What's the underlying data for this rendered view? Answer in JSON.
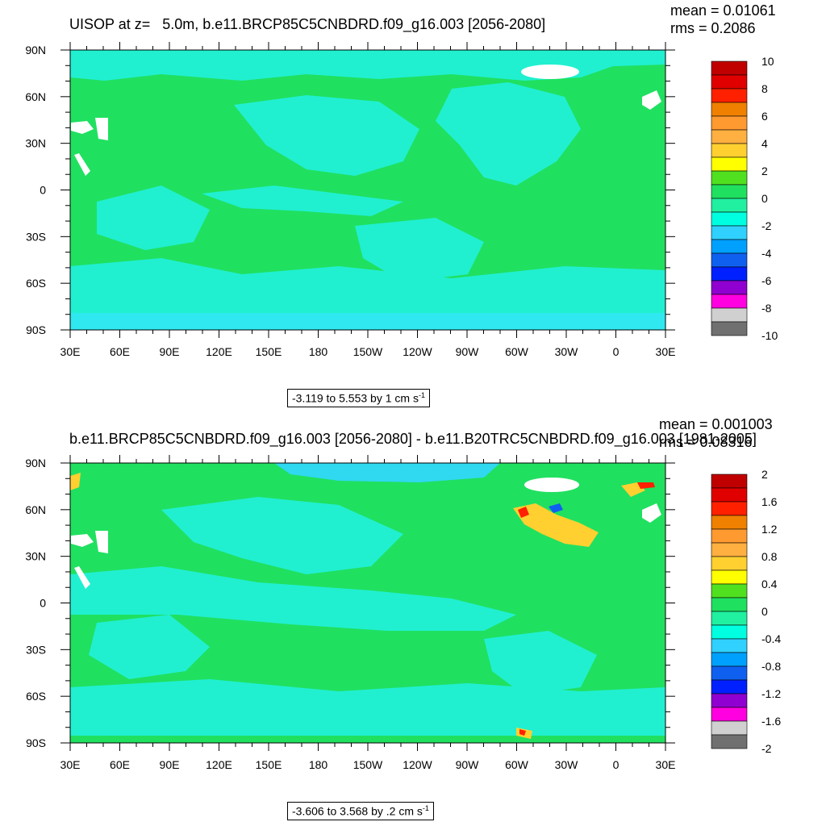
{
  "chart_data": [
    {
      "type": "heatmap",
      "title_parts": [
        "UISOP at z=",
        "5.0m, b.e11.BRCP85C5CNBDRD.f09_g16.003 [2056-2080]"
      ],
      "stats": {
        "mean": "mean = 0.01061",
        "rms": "rms = 0.2086"
      },
      "range_label": "-3.119 to 5.553 by 1 cm s",
      "units_sup": "-1",
      "x_ticks": [
        "30E",
        "60E",
        "90E",
        "120E",
        "150E",
        "180",
        "150W",
        "120W",
        "90W",
        "60W",
        "30W",
        "0",
        "30E"
      ],
      "y_ticks": [
        "90N",
        "60N",
        "30N",
        "0",
        "30S",
        "60S",
        "90S"
      ],
      "colorbar": {
        "labels": [
          "10",
          "8",
          "6",
          "4",
          "2",
          "0",
          "-2",
          "-4",
          "-6",
          "-8",
          "-10"
        ],
        "colors": [
          "#c00000",
          "#e00000",
          "#ff2000",
          "#f08000",
          "#ff9a30",
          "#ffb040",
          "#ffd030",
          "#ffff00",
          "#50e020",
          "#20e060",
          "#20f0a0",
          "#00ffe0",
          "#30d0ff",
          "#00a0ff",
          "#1060f0",
          "#0020ff",
          "#9000d0",
          "#ff00e0",
          "#d0d0d0",
          "#707070"
        ]
      },
      "dominant_colors": {
        "near_zero_positive": "#20e060",
        "near_zero_negative": "#20f0d0"
      }
    },
    {
      "type": "heatmap",
      "title": "b.e11.BRCP85C5CNBDRD.f09_g16.003 [2056-2080] - b.e11.B20TRC5CNBDRD.f09_g16.003 [1981-2005]",
      "stats": {
        "mean": "mean = 0.001003",
        "rms": "rms = 0.08316"
      },
      "range_label": "-3.606 to 3.568 by .2 cm s",
      "units_sup": "-1",
      "x_ticks": [
        "30E",
        "60E",
        "90E",
        "120E",
        "150E",
        "180",
        "150W",
        "120W",
        "90W",
        "60W",
        "30W",
        "0",
        "30E"
      ],
      "y_ticks": [
        "90N",
        "60N",
        "30N",
        "0",
        "30S",
        "60S",
        "90S"
      ],
      "colorbar": {
        "labels": [
          "2",
          "1.6",
          "1.2",
          "0.8",
          "0.4",
          "0",
          "-0.4",
          "-0.8",
          "-1.2",
          "-1.6",
          "-2"
        ],
        "colors": [
          "#c00000",
          "#e00000",
          "#ff2000",
          "#f08000",
          "#ff9a30",
          "#ffb040",
          "#ffd030",
          "#ffff00",
          "#50e020",
          "#20e060",
          "#20f0a0",
          "#00ffe0",
          "#30d0ff",
          "#00a0ff",
          "#1060f0",
          "#0020ff",
          "#9000d0",
          "#ff00e0",
          "#d0d0d0",
          "#707070"
        ]
      },
      "dominant_colors": {
        "near_zero_positive": "#20e060",
        "near_zero_negative": "#20f0d0"
      }
    }
  ]
}
